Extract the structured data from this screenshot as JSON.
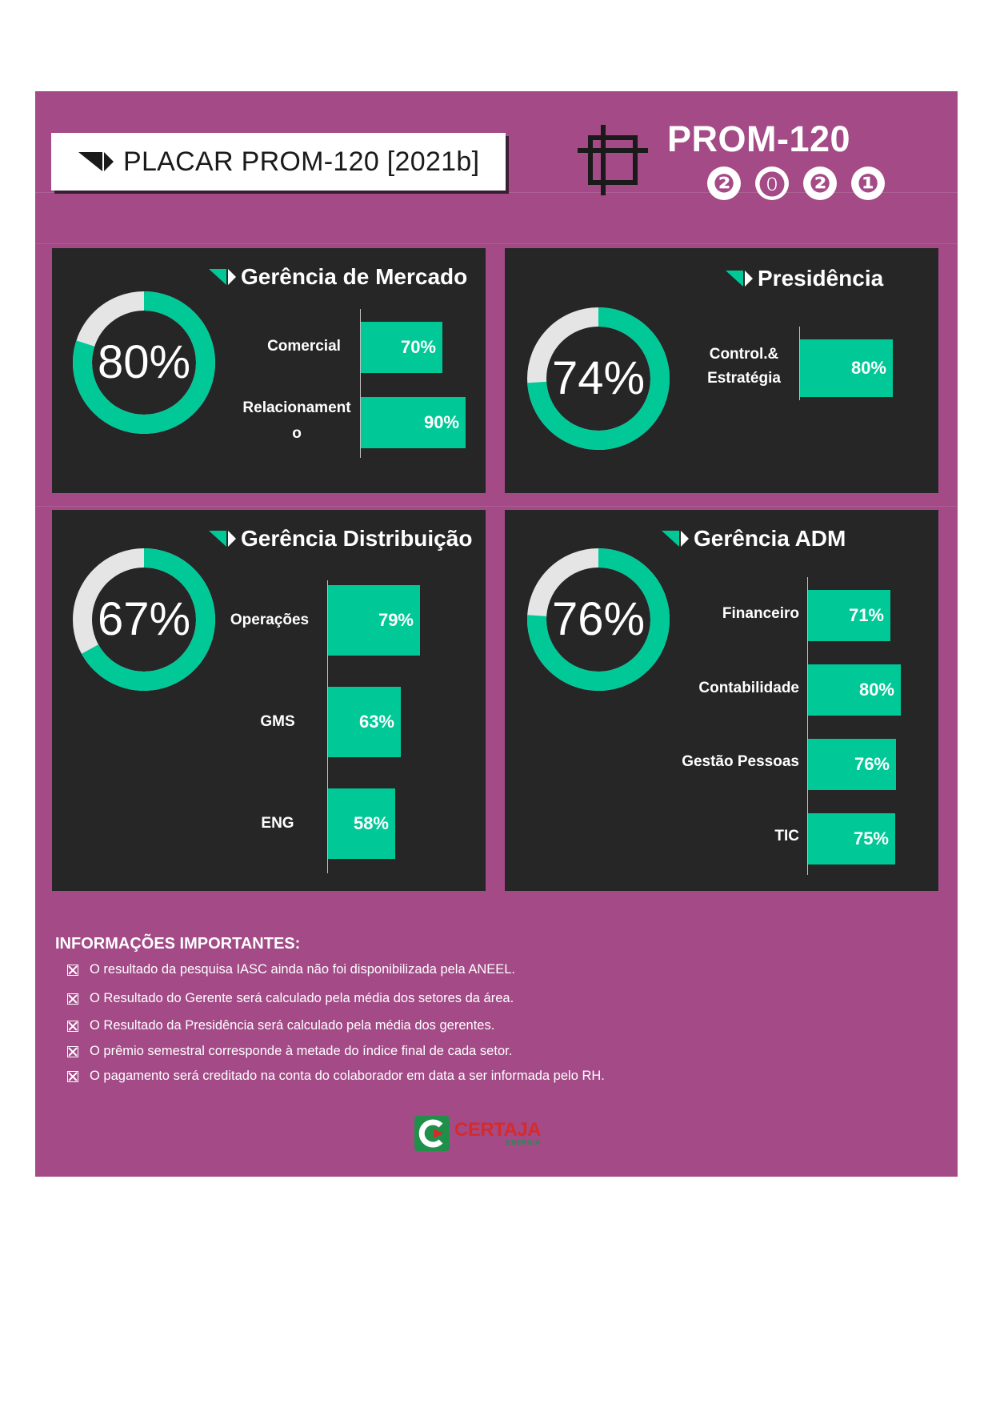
{
  "header": {
    "title": "PLACAR PROM-120 [2021b]",
    "brand_title": "PROM-120",
    "year_digits": [
      "❷",
      "⓿",
      "❷",
      "❶"
    ]
  },
  "colors": {
    "frame": "#a34a87",
    "panel": "#262626",
    "accent": "#00c897",
    "ring_remainder": "#e5e5e5"
  },
  "panels": [
    {
      "title": "Gerência de Mercado",
      "total_label": "80%",
      "total": 80,
      "bars": [
        {
          "label": "Comercial",
          "value": 70,
          "value_label": "70%"
        },
        {
          "label": "Relacionament o",
          "value": 90,
          "value_label": "90%"
        }
      ]
    },
    {
      "title": "Presidência",
      "total_label": "74%",
      "total": 74,
      "bars": [
        {
          "label": "Control.& Estratégia",
          "value": 80,
          "value_label": "80%"
        }
      ]
    },
    {
      "title": "Gerência Distribuição",
      "total_label": "67%",
      "total": 67,
      "bars": [
        {
          "label": "Operações",
          "value": 79,
          "value_label": "79%"
        },
        {
          "label": "GMS",
          "value": 63,
          "value_label": "63%"
        },
        {
          "label": "ENG",
          "value": 58,
          "value_label": "58%"
        }
      ]
    },
    {
      "title": "Gerência ADM",
      "total_label": "76%",
      "total": 76,
      "bars": [
        {
          "label": "Financeiro",
          "value": 71,
          "value_label": "71%"
        },
        {
          "label": "Contabilidade",
          "value": 80,
          "value_label": "80%"
        },
        {
          "label": "Gestão Pessoas",
          "value": 76,
          "value_label": "76%"
        },
        {
          "label": "TIC",
          "value": 75,
          "value_label": "75%"
        }
      ]
    }
  ],
  "info": {
    "heading": "INFORMAÇÕES IMPORTANTES:",
    "items": [
      "O resultado da pesquisa IASC ainda não foi disponibilizada pela ANEEL.",
      "O Resultado do Gerente será calculado pela média dos setores da área.",
      "O Resultado da Presidência será calculado pela média dos gerentes.",
      "O prêmio semestral corresponde à metade do índice final de cada setor.",
      "O pagamento será creditado na conta do colaborador em data a ser informada pelo RH."
    ]
  },
  "logo": {
    "name": "CERTAJA",
    "sub": "ENERGIA"
  }
}
